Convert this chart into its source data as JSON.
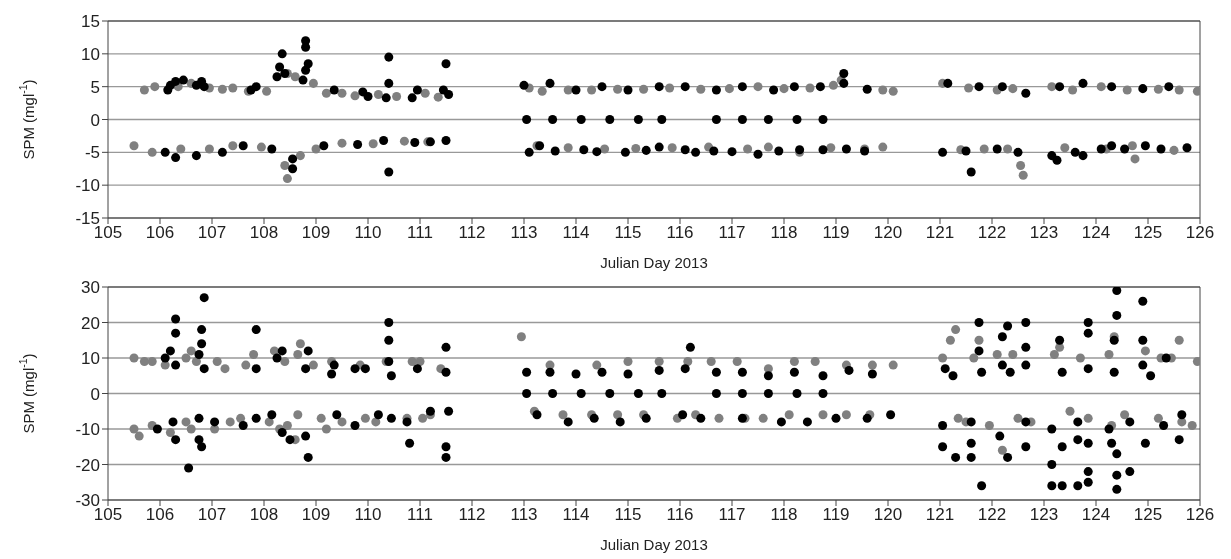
{
  "chart_data": [
    {
      "type": "scatter",
      "xlabel": "Julian Day 2013",
      "ylabel": "SPM (mgl$^{-1}$)",
      "xlim": [
        105,
        126
      ],
      "xticks": [
        105,
        106,
        107,
        108,
        109,
        110,
        111,
        112,
        113,
        114,
        115,
        116,
        117,
        118,
        119,
        120,
        121,
        122,
        123,
        124,
        125,
        126
      ],
      "ylim": [
        -15,
        15
      ],
      "yticks": [
        -15,
        -10,
        -5,
        0,
        5,
        10,
        15
      ],
      "grid": "y",
      "marker": "circle",
      "series": [
        {
          "color": "#808080",
          "x": [
            105.7,
            105.9,
            106.35,
            106.6,
            106.95,
            107.2,
            107.4,
            107.7,
            108.05,
            108.45,
            108.6,
            108.95,
            109.2,
            109.5,
            109.75,
            110.2,
            110.55,
            111.1,
            111.35,
            113.1,
            113.35,
            113.85,
            114.3,
            114.8,
            115.3,
            115.8,
            116.4,
            116.95,
            117.5,
            118.0,
            118.5,
            118.95,
            119.1,
            119.9,
            120.1,
            121.05,
            121.55,
            122.1,
            122.4,
            123.15,
            123.55,
            124.1,
            124.6,
            125.2,
            125.6,
            125.95,
            105.5,
            105.85,
            106.4,
            106.95,
            107.4,
            107.95,
            108.4,
            108.45,
            108.7,
            109.0,
            109.5,
            110.1,
            110.7,
            111.15,
            113.25,
            113.85,
            114.55,
            115.15,
            115.85,
            116.55,
            117.3,
            117.7,
            118.3,
            118.9,
            119.55,
            119.9,
            121.4,
            121.85,
            122.3,
            122.55,
            122.6,
            123.4,
            124.2,
            124.7,
            124.75,
            125.5
          ],
          "values": [
            4.5,
            5,
            5,
            5.5,
            4.8,
            4.6,
            4.8,
            4.3,
            4.3,
            7,
            6.5,
            5.5,
            4,
            4,
            3.6,
            3.8,
            3.5,
            4,
            3.4,
            4.8,
            4.3,
            4.5,
            4.5,
            4.6,
            4.6,
            4.8,
            4.6,
            4.7,
            5,
            4.7,
            4.8,
            5.2,
            6,
            4.5,
            4.3,
            5.5,
            4.8,
            4.5,
            4.7,
            5,
            4.5,
            5,
            4.5,
            4.6,
            4.5,
            4.3,
            -4,
            -5,
            -4.5,
            -4.5,
            -4,
            -4.2,
            -7,
            -9,
            -5.5,
            -4.5,
            -3.6,
            -3.7,
            -3.3,
            -3.4,
            -4,
            -4.3,
            -4.5,
            -4.4,
            -4.3,
            -4.2,
            -4.5,
            -4.2,
            -5,
            -4.3,
            -4.5,
            -4.2,
            -4.6,
            -4.5,
            -4.5,
            -7,
            -8.5,
            -4.3,
            -4.5,
            -4,
            -6,
            -4.7
          ]
        },
        {
          "color": "#000000",
          "x": [
            106.15,
            106.2,
            106.3,
            106.45,
            106.7,
            106.8,
            106.85,
            107.75,
            107.85,
            108.25,
            108.3,
            108.35,
            108.4,
            108.75,
            108.8,
            108.85,
            108.8,
            108.8,
            109.35,
            109.9,
            110.0,
            110.35,
            110.4,
            110.4,
            110.85,
            110.95,
            111.45,
            111.5,
            111.55,
            113.0,
            113.5,
            114.0,
            114.5,
            115.0,
            115.6,
            116.1,
            116.7,
            117.2,
            117.8,
            118.2,
            118.7,
            119.15,
            119.15,
            119.6,
            121.15,
            121.75,
            122.2,
            122.65,
            123.3,
            123.75,
            124.3,
            124.9,
            125.4,
            113.05,
            113.55,
            114.1,
            114.65,
            115.2,
            115.65,
            116.7,
            117.2,
            117.7,
            118.25,
            118.75,
            106.1,
            106.3,
            106.7,
            107.2,
            107.6,
            108.15,
            108.55,
            108.55,
            109.15,
            109.8,
            110.3,
            110.4,
            110.9,
            111.2,
            111.5,
            113.1,
            113.3,
            113.6,
            114.15,
            114.4,
            114.95,
            115.35,
            115.6,
            116.1,
            116.3,
            116.65,
            117.0,
            117.5,
            117.9,
            118.3,
            118.75,
            119.2,
            119.55,
            121.05,
            121.5,
            121.6,
            122.1,
            122.5,
            123.15,
            123.25,
            123.6,
            123.75,
            124.1,
            124.3,
            124.55,
            124.95,
            125.25,
            125.75
          ],
          "values": [
            4.5,
            5.2,
            5.8,
            6,
            5.2,
            5.8,
            5,
            4.5,
            5,
            6.5,
            8,
            10,
            7,
            6,
            7.5,
            8.5,
            11,
            12,
            4.5,
            4.2,
            3.5,
            3.3,
            5.5,
            9.5,
            3.3,
            4.5,
            4.5,
            8.5,
            3.8,
            5.2,
            5.5,
            4.5,
            5,
            4.5,
            5,
            5,
            4.5,
            5,
            4.5,
            5,
            5,
            5.5,
            7,
            4.6,
            5.5,
            5,
            5,
            4,
            5,
            5.5,
            5,
            4.7,
            5,
            0,
            0,
            0,
            0,
            0,
            0,
            0,
            0,
            0,
            0,
            0,
            -5,
            -5.8,
            -5.5,
            -5,
            -4,
            -4.5,
            -6,
            -7.5,
            -4,
            -3.8,
            -3.2,
            -8,
            -3.5,
            -3.4,
            -3.2,
            -5,
            -4,
            -4.8,
            -4.6,
            -4.9,
            -5,
            -4.7,
            -4.2,
            -4.6,
            -5,
            -4.8,
            -4.9,
            -5.3,
            -4.8,
            -4.6,
            -4.6,
            -4.5,
            -4.8,
            -5,
            -4.8,
            -8,
            -4.5,
            -5,
            -5.5,
            -6.2,
            -5,
            -5.5,
            -4.5,
            -4,
            -4.5,
            -4,
            -4.5,
            -4.3
          ]
        }
      ]
    },
    {
      "type": "scatter",
      "xlabel": "Julian Day 2013",
      "ylabel": "SPM (mgl$^{-1}$)",
      "xlim": [
        105,
        126
      ],
      "xticks": [
        105,
        106,
        107,
        108,
        109,
        110,
        111,
        112,
        113,
        114,
        115,
        116,
        117,
        118,
        119,
        120,
        121,
        122,
        123,
        124,
        125,
        126
      ],
      "ylim": [
        -30,
        30
      ],
      "yticks": [
        -30,
        -20,
        -10,
        0,
        10,
        20,
        30
      ],
      "grid": "y",
      "marker": "circle",
      "series": [
        {
          "color": "#808080",
          "x": [
            105.5,
            105.7,
            105.85,
            106.1,
            106.5,
            106.6,
            106.7,
            107.1,
            107.25,
            107.65,
            107.8,
            108.2,
            108.4,
            108.65,
            108.7,
            108.95,
            109.3,
            109.85,
            110.35,
            110.85,
            111.0,
            111.4,
            112.95,
            113.5,
            114.4,
            115.0,
            115.6,
            116.15,
            116.6,
            117.1,
            117.7,
            118.2,
            118.6,
            119.2,
            119.7,
            120.1,
            121.05,
            121.2,
            121.3,
            121.65,
            121.75,
            122.1,
            122.4,
            123.2,
            123.3,
            123.7,
            124.25,
            124.35,
            124.95,
            125.25,
            125.45,
            125.6,
            125.95,
            105.5,
            105.6,
            105.85,
            106.2,
            106.5,
            106.6,
            107.05,
            107.35,
            107.55,
            108.1,
            108.3,
            108.45,
            108.6,
            108.65,
            109.1,
            109.2,
            109.5,
            109.95,
            110.15,
            110.75,
            111.05,
            111.2,
            113.2,
            113.75,
            114.3,
            114.8,
            115.3,
            115.95,
            116.3,
            116.75,
            117.25,
            117.6,
            118.1,
            118.75,
            119.2,
            119.65,
            121.35,
            121.5,
            121.95,
            122.2,
            122.5,
            122.75,
            123.5,
            123.85,
            124.3,
            124.55,
            125.2,
            125.65,
            125.85
          ],
          "values": [
            10,
            9,
            9,
            8,
            10,
            12,
            9,
            9,
            7,
            8,
            11,
            12,
            9,
            11,
            14,
            8,
            9,
            8,
            9,
            9,
            9,
            7,
            16,
            8,
            8,
            9,
            9,
            9,
            9,
            9,
            7,
            9,
            9,
            8,
            8,
            8,
            10,
            15,
            18,
            10,
            15,
            11,
            11,
            11,
            13,
            10,
            11,
            16,
            12,
            10,
            10,
            15,
            9,
            -10,
            -12,
            -9,
            -11,
            -8,
            -10,
            -10,
            -8,
            -7,
            -8,
            -10,
            -9,
            -13,
            -6,
            -7,
            -10,
            -8,
            -7,
            -8,
            -7,
            -7,
            -6,
            -5,
            -6,
            -6,
            -6,
            -6,
            -7,
            -6,
            -7,
            -7,
            -7,
            -6,
            -6,
            -6,
            -6,
            -7,
            -8,
            -9,
            -16,
            -7,
            -8,
            -5,
            -7,
            -9,
            -6,
            -7,
            -8,
            -9
          ]
        },
        {
          "color": "#000000",
          "x": [
            106.1,
            106.2,
            106.3,
            106.3,
            106.3,
            106.75,
            106.8,
            106.8,
            106.85,
            106.85,
            107.85,
            107.85,
            108.25,
            108.35,
            108.8,
            108.85,
            109.3,
            109.35,
            109.75,
            109.95,
            110.4,
            110.4,
            110.4,
            110.45,
            110.95,
            111.5,
            111.5,
            113.05,
            113.5,
            114.0,
            114.5,
            115.0,
            115.6,
            116.1,
            116.2,
            116.7,
            117.2,
            117.7,
            118.2,
            118.75,
            119.25,
            119.7,
            121.1,
            121.25,
            121.8,
            121.75,
            121.75,
            122.2,
            122.2,
            122.3,
            122.35,
            122.65,
            122.65,
            122.65,
            123.35,
            123.3,
            123.85,
            123.85,
            123.85,
            124.35,
            124.35,
            124.4,
            124.4,
            124.9,
            124.9,
            124.9,
            125.05,
            125.35,
            113.05,
            113.55,
            114.1,
            114.65,
            115.2,
            115.65,
            116.7,
            117.2,
            117.7,
            118.25,
            118.75,
            105.95,
            106.25,
            106.3,
            106.55,
            106.75,
            106.8,
            106.75,
            107.05,
            107.6,
            107.85,
            108.15,
            108.35,
            108.5,
            108.85,
            108.8,
            109.4,
            109.75,
            110.2,
            110.45,
            110.75,
            110.8,
            111.2,
            111.5,
            111.5,
            111.55,
            113.25,
            113.85,
            114.35,
            114.85,
            115.35,
            116.05,
            116.4,
            117.2,
            117.95,
            118.45,
            119.0,
            119.6,
            120.05,
            121.05,
            121.05,
            121.3,
            121.6,
            121.6,
            121.6,
            121.8,
            122.15,
            122.3,
            122.65,
            122.65,
            123.15,
            123.15,
            123.15,
            123.35,
            123.35,
            123.65,
            123.65,
            123.65,
            123.85,
            123.85,
            123.85,
            124.25,
            124.3,
            124.4,
            124.4,
            124.4,
            124.65,
            124.65,
            124.95,
            125.3,
            125.6,
            125.65
          ],
          "values": [
            10,
            12,
            8,
            17,
            21,
            11,
            14,
            18,
            7,
            27,
            7,
            18,
            10,
            12,
            7,
            12,
            5.5,
            8,
            7,
            7,
            9,
            15,
            20,
            5,
            7,
            6,
            13,
            6,
            6,
            5.5,
            6,
            5.5,
            6.5,
            7,
            13,
            6,
            6,
            5,
            6,
            5,
            6.5,
            5.5,
            7,
            5,
            6,
            12,
            20,
            8,
            16,
            19,
            6,
            8,
            13,
            20,
            6,
            15,
            7,
            17,
            20,
            6,
            15,
            22,
            29,
            8,
            15,
            26,
            5,
            10,
            0,
            0,
            0,
            0,
            0,
            0,
            0,
            0,
            0,
            0,
            0,
            -10,
            -8,
            -13,
            -21,
            -13,
            -15,
            -7,
            -8,
            -9,
            -7,
            -6,
            -11,
            -13,
            -18,
            -12,
            -6,
            -9,
            -6,
            -7,
            -8,
            -14,
            -5,
            -15,
            -18,
            -5,
            -6,
            -8,
            -7,
            -8,
            -7,
            -6,
            -7,
            -7,
            -8,
            -8,
            -7,
            -7,
            -6,
            -9,
            -15,
            -18,
            -8,
            -14,
            -18,
            -26,
            -12,
            -18,
            -8,
            -15,
            -10,
            -20,
            -26,
            -15,
            -26,
            -8,
            -13,
            -26,
            -14,
            -22,
            -25,
            -10,
            -14,
            -17,
            -23,
            -27,
            -22,
            -8,
            -14,
            -9,
            -13,
            -6
          ]
        }
      ]
    }
  ]
}
